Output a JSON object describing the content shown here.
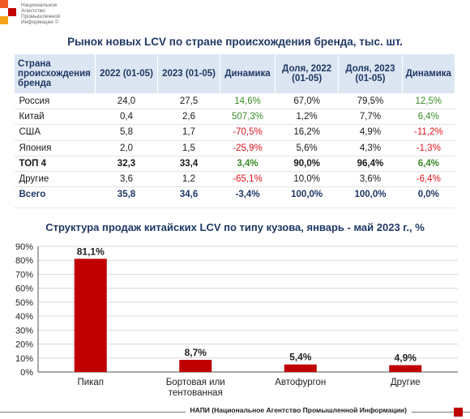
{
  "logo": {
    "text": "Национальное\nАгентство\nПромышленной\nИнформации ©"
  },
  "title": "Рынок новых LCV по стране происхождения бренда, тыс. шт.",
  "table": {
    "headers": [
      "Страна происхождения бренда",
      "2022 (01-05)",
      "2023 (01-05)",
      "Динамика",
      "Доля, 2022 (01-05)",
      "Доля, 2023 (01-05)",
      "Динамика"
    ],
    "rows": [
      {
        "country": "Россия",
        "v2022": "24,0",
        "v2023": "27,5",
        "dyn": "14,6%",
        "share2022": "67,0%",
        "share2023": "79,5%",
        "dynShare": "12,5%"
      },
      {
        "country": "Китай",
        "v2022": "0,4",
        "v2023": "2,6",
        "dyn": "507,3%",
        "share2022": "1,2%",
        "share2023": "7,7%",
        "dynShare": "6,4%"
      },
      {
        "country": "США",
        "v2022": "5,8",
        "v2023": "1,7",
        "dyn": "-70,5%",
        "share2022": "16,2%",
        "share2023": "4,9%",
        "dynShare": "-11,2%"
      },
      {
        "country": "Япония",
        "v2022": "2,0",
        "v2023": "1,5",
        "dyn": "-25,9%",
        "share2022": "5,6%",
        "share2023": "4,3%",
        "dynShare": "-1,3%"
      },
      {
        "country": "ТОП 4",
        "v2022": "32,3",
        "v2023": "33,4",
        "dyn": "3,4%",
        "share2022": "90,0%",
        "share2023": "96,4%",
        "dynShare": "6,4%"
      },
      {
        "country": "Другие",
        "v2022": "3,6",
        "v2023": "1,2",
        "dyn": "-65,1%",
        "share2022": "10,0%",
        "share2023": "3,6%",
        "dynShare": "-6,4%"
      },
      {
        "country": "Всего",
        "v2022": "35,8",
        "v2023": "34,6",
        "dyn": "-3,4%",
        "share2022": "100,0%",
        "share2023": "100,0%",
        "dynShare": "0,0%"
      }
    ],
    "colors": {
      "positive": "#3a8a28",
      "negative": "#e0141e",
      "header_bg": "#dce6f2",
      "header_text": "#1f3864"
    }
  },
  "chart_data": {
    "type": "bar",
    "title": "Структура продаж китайских LCV по типу кузова, январь - май 2023 г., %",
    "categories": [
      "Пикап",
      "Бортовая или тентованная",
      "Автофургон",
      "Другие"
    ],
    "values": [
      81.1,
      8.7,
      5.4,
      4.9
    ],
    "value_labels": [
      "81,1%",
      "8,7%",
      "5,4%",
      "4,9%"
    ],
    "yticks": [
      "0%",
      "10%",
      "20%",
      "30%",
      "40%",
      "50%",
      "60%",
      "70%",
      "80%",
      "90%"
    ],
    "ylim": [
      0,
      90
    ],
    "grid": true,
    "bar_color": "#c00000"
  },
  "footer": {
    "text": "НАПИ (Национальное Агентство Промышленной Информации)"
  }
}
